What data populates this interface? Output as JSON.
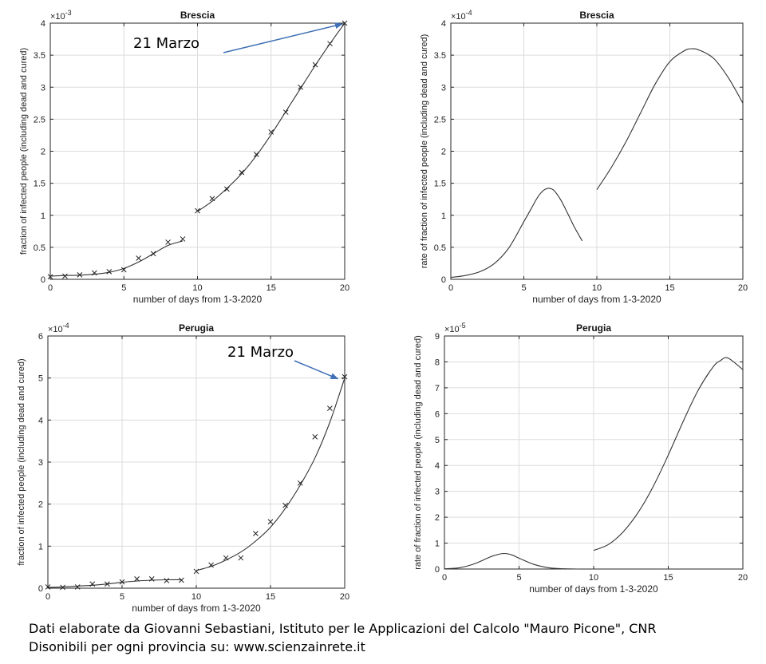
{
  "palette": {
    "axis": "#262626",
    "grid": "#dcdcdc",
    "line": "#333333",
    "arrow": "#3f6fb5"
  },
  "caption": {
    "line1": "Dati elaborate da Giovanni Sebastiani, Istituto per le Applicazioni del Calcolo \"Mauro Picone\", CNR",
    "line2": "Disonibili per ogni provincia su: www.scienzainrete.it"
  },
  "chart_data": [
    {
      "id": "brescia-cumulative",
      "type": "line",
      "title": "Brescia",
      "xlabel": "number of days from 1-3-2020",
      "ylabel": "fraction of infected people (including dead and cured)",
      "exponent_label": "×10",
      "exponent": "-3",
      "xlim": [
        0,
        20
      ],
      "ylim": [
        0,
        4
      ],
      "xticks": [
        "0",
        "5",
        "10",
        "15",
        "20"
      ],
      "yticks": [
        "0",
        "0.5",
        "1",
        "1.5",
        "2",
        "2.5",
        "3",
        "3.5",
        "4"
      ],
      "grid": true,
      "annotation": {
        "text": "21 Marzo",
        "points_to": [
          20,
          4.0
        ]
      },
      "observed": {
        "x": [
          0,
          1,
          2,
          3,
          4,
          5,
          6,
          7,
          8,
          9,
          10,
          11,
          12,
          13,
          14,
          15,
          16,
          17,
          18,
          19,
          20
        ],
        "y": [
          0.04,
          0.05,
          0.07,
          0.1,
          0.12,
          0.15,
          0.33,
          0.4,
          0.58,
          0.63,
          1.07,
          1.26,
          1.41,
          1.67,
          1.95,
          2.3,
          2.61,
          3.0,
          3.35,
          3.68,
          4.0
        ]
      },
      "fit_segments": [
        {
          "x": [
            0,
            1,
            2,
            3,
            4,
            5,
            6,
            7,
            8,
            9
          ],
          "y": [
            0.05,
            0.06,
            0.065,
            0.08,
            0.11,
            0.17,
            0.27,
            0.4,
            0.53,
            0.6
          ]
        },
        {
          "x": [
            10,
            11,
            12,
            13,
            14,
            15,
            16,
            17,
            18,
            19,
            20
          ],
          "y": [
            1.06,
            1.22,
            1.42,
            1.65,
            1.93,
            2.26,
            2.62,
            2.98,
            3.34,
            3.68,
            4.0
          ]
        }
      ]
    },
    {
      "id": "brescia-rate",
      "type": "line",
      "title": "Brescia",
      "xlabel": "number of days from 1-3-2020",
      "ylabel": "rate of fraction of infected people (including dead and cured)",
      "exponent_label": "×10",
      "exponent": "-4",
      "xlim": [
        0,
        20
      ],
      "ylim": [
        0,
        4
      ],
      "xticks": [
        "0",
        "5",
        "10",
        "15",
        "20"
      ],
      "yticks": [
        "0",
        "0.5",
        "1",
        "1.5",
        "2",
        "2.5",
        "3",
        "3.5",
        "4"
      ],
      "grid": true,
      "fit_segments": [
        {
          "x": [
            0,
            1,
            2,
            3,
            4,
            5,
            5.5,
            6,
            6.5,
            7,
            7.5,
            8,
            8.5,
            9
          ],
          "y": [
            0.03,
            0.06,
            0.12,
            0.25,
            0.5,
            0.9,
            1.1,
            1.3,
            1.41,
            1.4,
            1.25,
            1.03,
            0.8,
            0.6
          ]
        },
        {
          "x": [
            10,
            11,
            12,
            13,
            14,
            15,
            16,
            16.5,
            17,
            18,
            19,
            20
          ],
          "y": [
            1.4,
            1.75,
            2.15,
            2.6,
            3.05,
            3.4,
            3.57,
            3.6,
            3.58,
            3.45,
            3.15,
            2.75
          ]
        }
      ]
    },
    {
      "id": "perugia-cumulative",
      "type": "line",
      "title": "Perugia",
      "xlabel": "number of days from 1-3-2020",
      "ylabel": "fraction of infected people (including dead and cured)",
      "exponent_label": "×10",
      "exponent": "-4",
      "xlim": [
        0,
        20
      ],
      "ylim": [
        0,
        6
      ],
      "xticks": [
        "0",
        "5",
        "10",
        "15",
        "20"
      ],
      "yticks": [
        "0",
        "1",
        "2",
        "3",
        "4",
        "5",
        "6"
      ],
      "grid": true,
      "annotation": {
        "text": "21 Marzo",
        "points_to": [
          19.7,
          5.0
        ]
      },
      "observed": {
        "x": [
          0,
          1,
          2,
          3,
          4,
          5,
          6,
          7,
          8,
          9,
          10,
          11,
          12,
          13,
          14,
          15,
          16,
          17,
          18,
          19,
          20
        ],
        "y": [
          0.03,
          0.02,
          0.03,
          0.1,
          0.1,
          0.15,
          0.22,
          0.22,
          0.18,
          0.19,
          0.4,
          0.55,
          0.72,
          0.72,
          1.3,
          1.58,
          1.97,
          2.5,
          3.6,
          4.28,
          5.03
        ]
      },
      "fit_segments": [
        {
          "x": [
            0,
            1,
            2,
            3,
            4,
            5,
            6,
            7,
            8,
            9
          ],
          "y": [
            0.02,
            0.03,
            0.05,
            0.07,
            0.1,
            0.14,
            0.17,
            0.19,
            0.2,
            0.2
          ]
        },
        {
          "x": [
            10,
            11,
            12,
            13,
            14,
            15,
            16,
            17,
            18,
            19,
            20
          ],
          "y": [
            0.42,
            0.52,
            0.67,
            0.86,
            1.12,
            1.45,
            1.9,
            2.45,
            3.1,
            3.95,
            5.0
          ]
        }
      ]
    },
    {
      "id": "perugia-rate",
      "type": "line",
      "title": "Perugia",
      "xlabel": "number of days from 1-3-2020",
      "ylabel": "rate of fraction of infected people (including dead and cured)",
      "exponent_label": "×10",
      "exponent": "-5",
      "xlim": [
        0,
        20
      ],
      "ylim": [
        0,
        9
      ],
      "xticks": [
        "0",
        "5",
        "10",
        "15",
        "20"
      ],
      "yticks": [
        "0",
        "1",
        "2",
        "3",
        "4",
        "5",
        "6",
        "7",
        "8",
        "9"
      ],
      "grid": true,
      "fit_segments": [
        {
          "x": [
            0,
            1,
            2,
            3,
            3.5,
            4,
            4.5,
            5,
            6,
            7,
            8,
            9
          ],
          "y": [
            0.01,
            0.05,
            0.2,
            0.45,
            0.55,
            0.6,
            0.55,
            0.42,
            0.18,
            0.05,
            0.01,
            0.0
          ]
        },
        {
          "x": [
            10,
            11,
            12,
            13,
            14,
            15,
            16,
            17,
            18,
            18.5,
            19,
            20
          ],
          "y": [
            0.72,
            0.95,
            1.45,
            2.2,
            3.2,
            4.4,
            5.7,
            6.9,
            7.8,
            8.05,
            8.15,
            7.7
          ]
        }
      ]
    }
  ]
}
